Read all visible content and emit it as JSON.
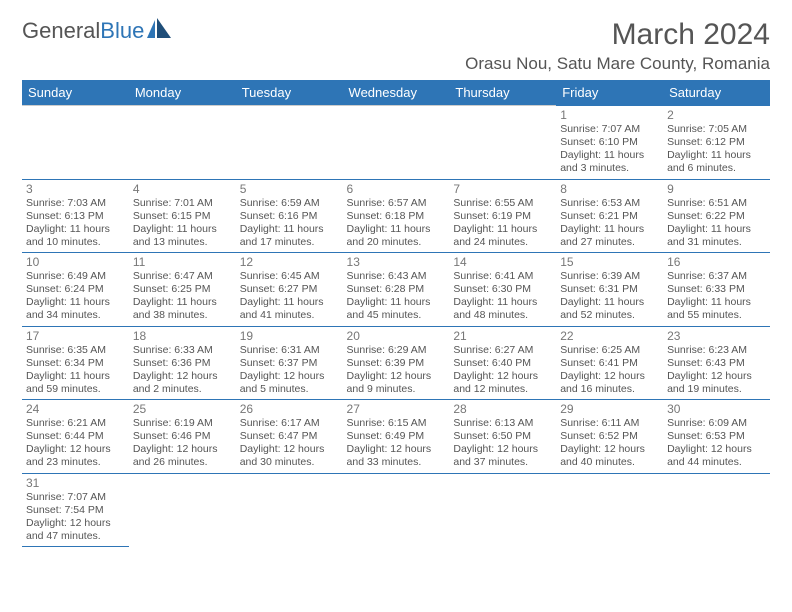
{
  "logo": {
    "text1": "General",
    "text2": "Blue"
  },
  "title": "March 2024",
  "location": "Orasu Nou, Satu Mare County, Romania",
  "colors": {
    "header_bg": "#2e75b6",
    "header_text": "#ffffff",
    "border": "#2e75b6",
    "daynum": "#777777",
    "text": "#555555"
  },
  "daynames": [
    "Sunday",
    "Monday",
    "Tuesday",
    "Wednesday",
    "Thursday",
    "Friday",
    "Saturday"
  ],
  "weeks": [
    [
      null,
      null,
      null,
      null,
      null,
      {
        "n": "1",
        "sr": "7:07 AM",
        "ss": "6:10 PM",
        "dl": "11 hours and 3 minutes."
      },
      {
        "n": "2",
        "sr": "7:05 AM",
        "ss": "6:12 PM",
        "dl": "11 hours and 6 minutes."
      }
    ],
    [
      {
        "n": "3",
        "sr": "7:03 AM",
        "ss": "6:13 PM",
        "dl": "11 hours and 10 minutes."
      },
      {
        "n": "4",
        "sr": "7:01 AM",
        "ss": "6:15 PM",
        "dl": "11 hours and 13 minutes."
      },
      {
        "n": "5",
        "sr": "6:59 AM",
        "ss": "6:16 PM",
        "dl": "11 hours and 17 minutes."
      },
      {
        "n": "6",
        "sr": "6:57 AM",
        "ss": "6:18 PM",
        "dl": "11 hours and 20 minutes."
      },
      {
        "n": "7",
        "sr": "6:55 AM",
        "ss": "6:19 PM",
        "dl": "11 hours and 24 minutes."
      },
      {
        "n": "8",
        "sr": "6:53 AM",
        "ss": "6:21 PM",
        "dl": "11 hours and 27 minutes."
      },
      {
        "n": "9",
        "sr": "6:51 AM",
        "ss": "6:22 PM",
        "dl": "11 hours and 31 minutes."
      }
    ],
    [
      {
        "n": "10",
        "sr": "6:49 AM",
        "ss": "6:24 PM",
        "dl": "11 hours and 34 minutes."
      },
      {
        "n": "11",
        "sr": "6:47 AM",
        "ss": "6:25 PM",
        "dl": "11 hours and 38 minutes."
      },
      {
        "n": "12",
        "sr": "6:45 AM",
        "ss": "6:27 PM",
        "dl": "11 hours and 41 minutes."
      },
      {
        "n": "13",
        "sr": "6:43 AM",
        "ss": "6:28 PM",
        "dl": "11 hours and 45 minutes."
      },
      {
        "n": "14",
        "sr": "6:41 AM",
        "ss": "6:30 PM",
        "dl": "11 hours and 48 minutes."
      },
      {
        "n": "15",
        "sr": "6:39 AM",
        "ss": "6:31 PM",
        "dl": "11 hours and 52 minutes."
      },
      {
        "n": "16",
        "sr": "6:37 AM",
        "ss": "6:33 PM",
        "dl": "11 hours and 55 minutes."
      }
    ],
    [
      {
        "n": "17",
        "sr": "6:35 AM",
        "ss": "6:34 PM",
        "dl": "11 hours and 59 minutes."
      },
      {
        "n": "18",
        "sr": "6:33 AM",
        "ss": "6:36 PM",
        "dl": "12 hours and 2 minutes."
      },
      {
        "n": "19",
        "sr": "6:31 AM",
        "ss": "6:37 PM",
        "dl": "12 hours and 5 minutes."
      },
      {
        "n": "20",
        "sr": "6:29 AM",
        "ss": "6:39 PM",
        "dl": "12 hours and 9 minutes."
      },
      {
        "n": "21",
        "sr": "6:27 AM",
        "ss": "6:40 PM",
        "dl": "12 hours and 12 minutes."
      },
      {
        "n": "22",
        "sr": "6:25 AM",
        "ss": "6:41 PM",
        "dl": "12 hours and 16 minutes."
      },
      {
        "n": "23",
        "sr": "6:23 AM",
        "ss": "6:43 PM",
        "dl": "12 hours and 19 minutes."
      }
    ],
    [
      {
        "n": "24",
        "sr": "6:21 AM",
        "ss": "6:44 PM",
        "dl": "12 hours and 23 minutes."
      },
      {
        "n": "25",
        "sr": "6:19 AM",
        "ss": "6:46 PM",
        "dl": "12 hours and 26 minutes."
      },
      {
        "n": "26",
        "sr": "6:17 AM",
        "ss": "6:47 PM",
        "dl": "12 hours and 30 minutes."
      },
      {
        "n": "27",
        "sr": "6:15 AM",
        "ss": "6:49 PM",
        "dl": "12 hours and 33 minutes."
      },
      {
        "n": "28",
        "sr": "6:13 AM",
        "ss": "6:50 PM",
        "dl": "12 hours and 37 minutes."
      },
      {
        "n": "29",
        "sr": "6:11 AM",
        "ss": "6:52 PM",
        "dl": "12 hours and 40 minutes."
      },
      {
        "n": "30",
        "sr": "6:09 AM",
        "ss": "6:53 PM",
        "dl": "12 hours and 44 minutes."
      }
    ],
    [
      {
        "n": "31",
        "sr": "7:07 AM",
        "ss": "7:54 PM",
        "dl": "12 hours and 47 minutes."
      },
      null,
      null,
      null,
      null,
      null,
      null
    ]
  ],
  "labels": {
    "sunrise": "Sunrise:",
    "sunset": "Sunset:",
    "daylight": "Daylight:"
  }
}
